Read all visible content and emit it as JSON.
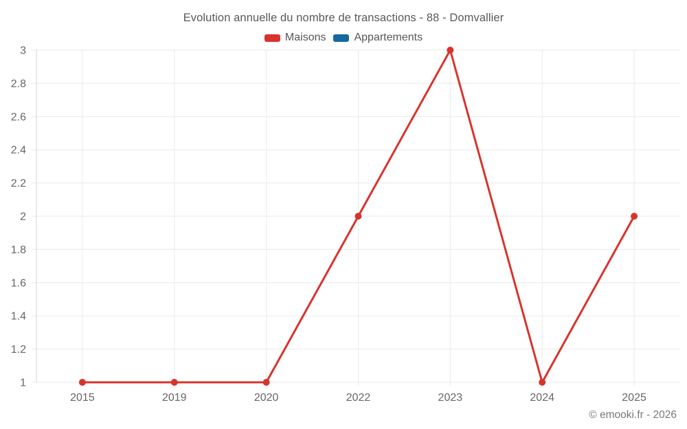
{
  "chart_data": {
    "type": "line",
    "title": "Evolution annuelle du nombre de transactions - 88 - Domvallier",
    "categories": [
      "2015",
      "2019",
      "2020",
      "2022",
      "2023",
      "2024",
      "2025"
    ],
    "series": [
      {
        "name": "Maisons",
        "color": "#d8332d",
        "values": [
          1,
          1,
          1,
          2,
          3,
          1,
          2
        ]
      },
      {
        "name": "Appartements",
        "color": "#16699e",
        "values": []
      }
    ],
    "xlabel": "",
    "ylabel": "",
    "ylim": [
      1,
      3
    ],
    "ytick_step": 0.2,
    "ytick_labels": [
      "1",
      "1.2",
      "1.4",
      "1.6",
      "1.8",
      "2",
      "2.2",
      "2.4",
      "2.6",
      "2.8",
      "3"
    ],
    "grid": true,
    "legend_position": "top"
  },
  "colors": {
    "grid": "#e9e9e9",
    "axis": "#d6d6d6",
    "tick_text": "#666666"
  },
  "footer": {
    "text": "© emooki.fr - 2026"
  }
}
